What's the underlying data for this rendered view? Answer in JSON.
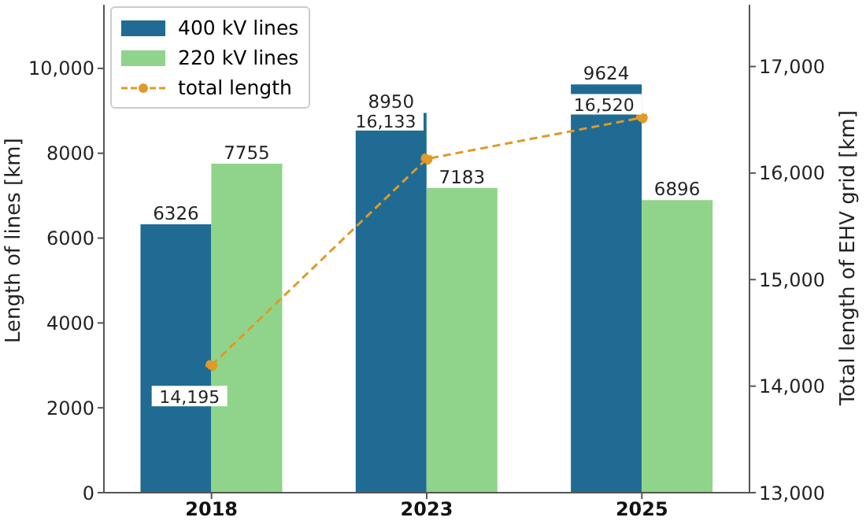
{
  "chart_data": {
    "type": "bar",
    "xlabel": null,
    "ylabel": "Length of lines [km]",
    "y2label": "Total length of EHV grid [km]",
    "categories": [
      "2018",
      "2023",
      "2025"
    ],
    "series": [
      {
        "name": "400 kV lines",
        "color": "#1f6b94",
        "values": [
          6326,
          8950,
          9624
        ]
      },
      {
        "name": "220 kV lines",
        "color": "#8fd48a",
        "values": [
          7755,
          7183,
          6896
        ]
      },
      {
        "name": "total length",
        "type": "line",
        "axis": "y2",
        "color": "#e09a26",
        "values": [
          14195,
          16133,
          16520
        ],
        "value_labels": [
          "14,195",
          "16,133",
          "16,520"
        ],
        "marker": "circle",
        "line_style": "dashed"
      }
    ],
    "data_labels": true,
    "ylim": [
      0,
      11500
    ],
    "yticks": [
      0,
      2000,
      4000,
      6000,
      8000,
      {
        "value": 10000,
        "label": "10,000"
      }
    ],
    "y2lim": [
      13000,
      17580
    ],
    "y2ticks": [
      {
        "value": 13000,
        "label": "13,000"
      },
      {
        "value": 14000,
        "label": "14,000"
      },
      {
        "value": 15000,
        "label": "15,000"
      },
      {
        "value": 16000,
        "label": "16,000"
      },
      {
        "value": 17000,
        "label": "17,000"
      }
    ],
    "grid": false,
    "legend": "top left"
  }
}
